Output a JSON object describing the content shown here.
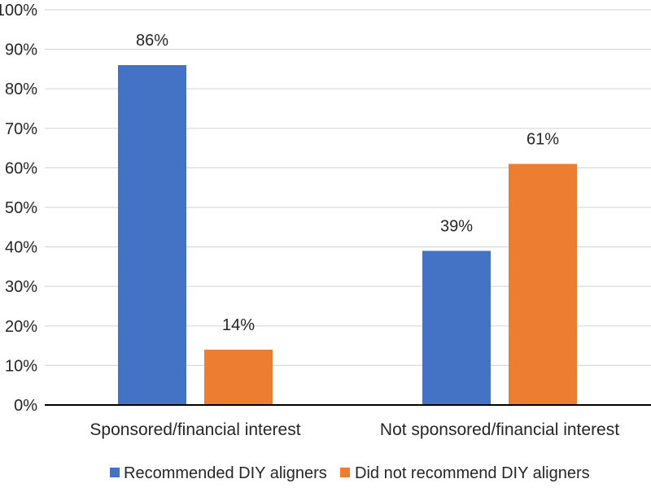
{
  "chart_data": {
    "type": "bar",
    "categories": [
      "Sponsored/financial interest",
      "Not sponsored/financial interest"
    ],
    "series": [
      {
        "name": "Recommended DIY aligners",
        "values": [
          86,
          39
        ],
        "color": "#4472C4"
      },
      {
        "name": "Did not recommend DIY aligners",
        "values": [
          14,
          61
        ],
        "color": "#ED7D31"
      }
    ],
    "data_labels": [
      [
        "86%",
        "39%"
      ],
      [
        "14%",
        "61%"
      ]
    ],
    "y_ticks": [
      "0%",
      "10%",
      "20%",
      "30%",
      "40%",
      "50%",
      "60%",
      "70%",
      "80%",
      "90%",
      "100%"
    ],
    "ylim": [
      0,
      100
    ],
    "grid": true,
    "legend_position": "bottom"
  }
}
